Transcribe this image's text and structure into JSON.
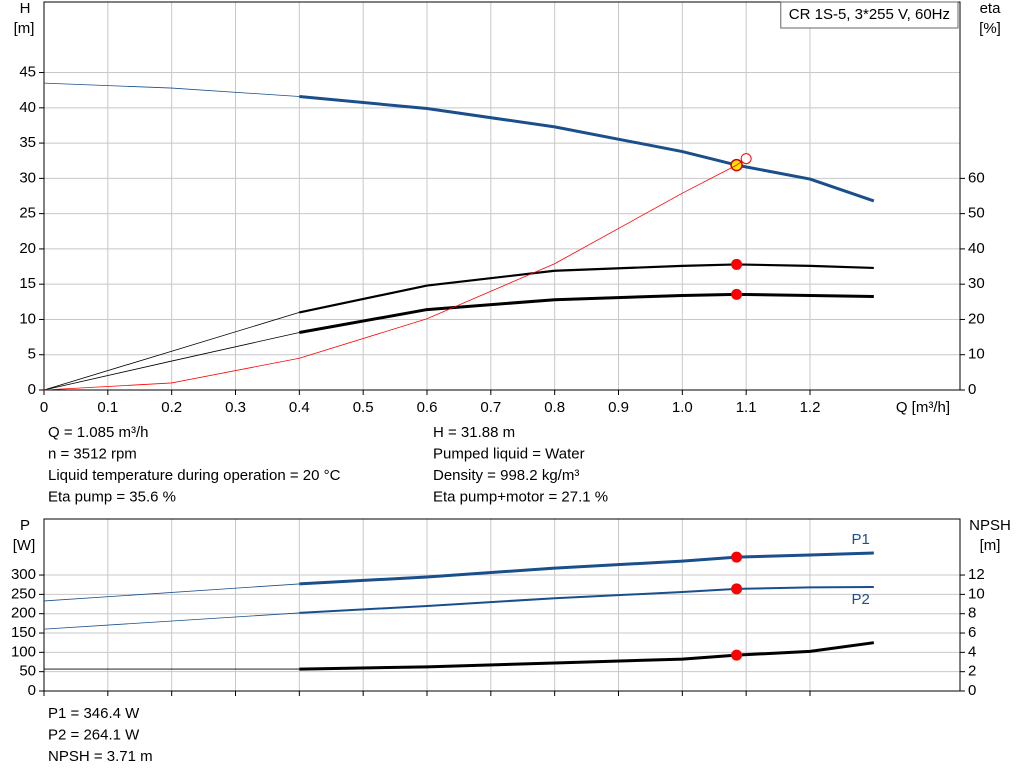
{
  "chart_data": [
    {
      "type": "line",
      "title": "CR 1S-5, 3*255 V, 60Hz",
      "ylabel": "H",
      "yunit": "[m]",
      "y2label": "eta",
      "y2unit": "[%]",
      "xlabel": "Q [m³/h]",
      "xlim": [
        0,
        1.435
      ],
      "ylim": [
        0,
        55
      ],
      "y2lim": [
        0,
        110
      ],
      "xticks": [
        0,
        0.1,
        0.2,
        0.3,
        0.4,
        0.5,
        0.6,
        0.7,
        0.8,
        0.9,
        {
          "value": 1,
          "label": "1.0"
        },
        1.1,
        1.2
      ],
      "yticks": [
        0,
        5,
        10,
        15,
        20,
        25,
        30,
        35,
        40,
        45
      ],
      "y2ticks": [
        0,
        10,
        20,
        30,
        40,
        50,
        60
      ],
      "grid": true,
      "duty_point_q": 1.085,
      "extrapolated_below": 0.4,
      "series": [
        {
          "color": "#1a4f8b",
          "width": 3,
          "marker_color": "#ffe600",
          "x": [
            0,
            0.2,
            0.4,
            0.6,
            0.8,
            1.0,
            1.085,
            1.2,
            1.3
          ],
          "values": [
            43.5,
            42.8,
            41.6,
            39.9,
            37.3,
            33.8,
            31.88,
            29.9,
            26.8
          ]
        },
        {
          "color": "#000000",
          "width": 2.2,
          "axis": "y2",
          "marker_color": "#ff0000",
          "x": [
            0,
            0.2,
            0.4,
            0.6,
            0.8,
            1.0,
            1.085,
            1.2,
            1.3
          ],
          "values": [
            0,
            11,
            22,
            29.6,
            33.8,
            35.2,
            35.6,
            35.2,
            34.6
          ]
        },
        {
          "color": "#000000",
          "width": 3,
          "axis": "y2",
          "marker_color": "#ff0000",
          "x": [
            0,
            0.2,
            0.4,
            0.6,
            0.8,
            1.0,
            1.085,
            1.2,
            1.3
          ],
          "values": [
            0,
            8.2,
            16.3,
            22.8,
            25.6,
            26.8,
            27.1,
            26.8,
            26.5
          ]
        },
        {
          "color": "#ff0000",
          "width": 0.8,
          "end_marker": "open",
          "x": [
            0,
            0.2,
            0.4,
            0.6,
            0.8,
            1.0,
            1.085,
            1.1
          ],
          "values": [
            0,
            1.0,
            4.5,
            10.1,
            17.9,
            27.9,
            31.88,
            32.8
          ]
        }
      ],
      "info_left": [
        "Q = 1.085 m³/h",
        "n = 3512 rpm",
        "Liquid temperature during operation = 20 °C",
        "Eta pump = 35.6 %"
      ],
      "info_right": [
        "H = 31.88 m",
        "Pumped liquid = Water",
        "Density = 998.2 kg/m³",
        "Eta pump+motor = 27.1 %"
      ]
    },
    {
      "type": "line",
      "ylabel": "P",
      "yunit": "[W]",
      "y2label": "NPSH",
      "y2unit": "[m]",
      "xlim": [
        0,
        1.435
      ],
      "ylim": [
        0,
        445
      ],
      "y2lim": [
        0,
        17.8
      ],
      "yticks": [
        0,
        50,
        100,
        150,
        200,
        250,
        300
      ],
      "y2ticks": [
        0,
        2,
        4,
        6,
        8,
        10,
        12
      ],
      "grid": true,
      "duty_point_q": 1.085,
      "extrapolated_below": 0.4,
      "series": [
        {
          "name": "P1",
          "color": "#1a4f8b",
          "width": 3,
          "marker_color": "#ff0000",
          "label_side": "above",
          "x": [
            0,
            0.4,
            0.6,
            0.8,
            1.0,
            1.085,
            1.2,
            1.3
          ],
          "values": [
            233,
            277,
            295,
            318,
            336,
            346.4,
            352,
            357
          ]
        },
        {
          "name": "P2",
          "color": "#1a4f8b",
          "width": 2,
          "marker_color": "#ff0000",
          "label_side": "below",
          "x": [
            0,
            0.4,
            0.6,
            0.8,
            1.0,
            1.085,
            1.2,
            1.3
          ],
          "values": [
            160,
            202,
            220,
            240,
            256,
            264.1,
            268,
            269
          ]
        },
        {
          "color": "#000000",
          "width": 3,
          "axis": "y2",
          "marker_color": "#ff0000",
          "x": [
            0,
            0.4,
            0.6,
            0.8,
            1.0,
            1.085,
            1.2,
            1.3
          ],
          "values": [
            2.27,
            2.27,
            2.5,
            2.9,
            3.3,
            3.71,
            4.1,
            5.0
          ]
        }
      ],
      "info_left": [
        "P1 = 346.4 W",
        "P2 = 264.1 W",
        "NPSH = 3.71 m"
      ]
    }
  ]
}
